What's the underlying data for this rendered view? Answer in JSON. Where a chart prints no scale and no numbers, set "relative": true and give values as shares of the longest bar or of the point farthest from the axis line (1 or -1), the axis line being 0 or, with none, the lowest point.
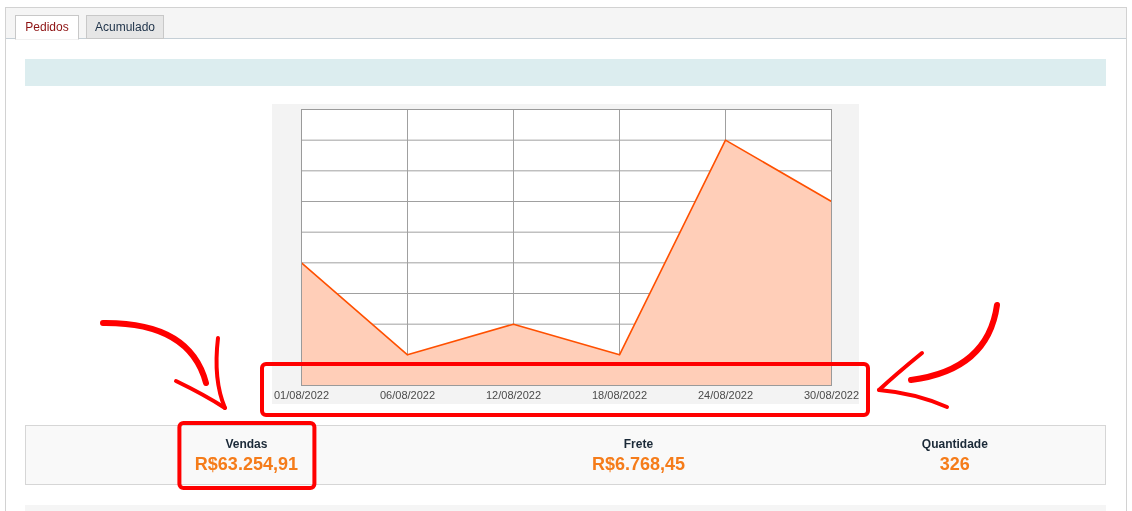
{
  "chart_data": [
    {
      "type": "other",
      "annotations": [
        "Pedidos",
        "Acumulado"
      ]
    },
    {
      "type": "area",
      "categories": [
        "01/08/2022",
        "06/08/2022",
        "12/08/2022",
        "18/08/2022",
        "24/08/2022",
        "30/08/2022"
      ],
      "values": [
        0.5,
        0.125,
        0.25,
        0.125,
        1,
        0.75
      ],
      "color": "#ff5000",
      "relative": true,
      "grid": true
    },
    {
      "type": "other",
      "annotations": [
        "Vendas",
        "R$63.254,91",
        "Frete",
        "R$6.768,45",
        "Quantidade",
        "326"
      ]
    }
  ]
}
